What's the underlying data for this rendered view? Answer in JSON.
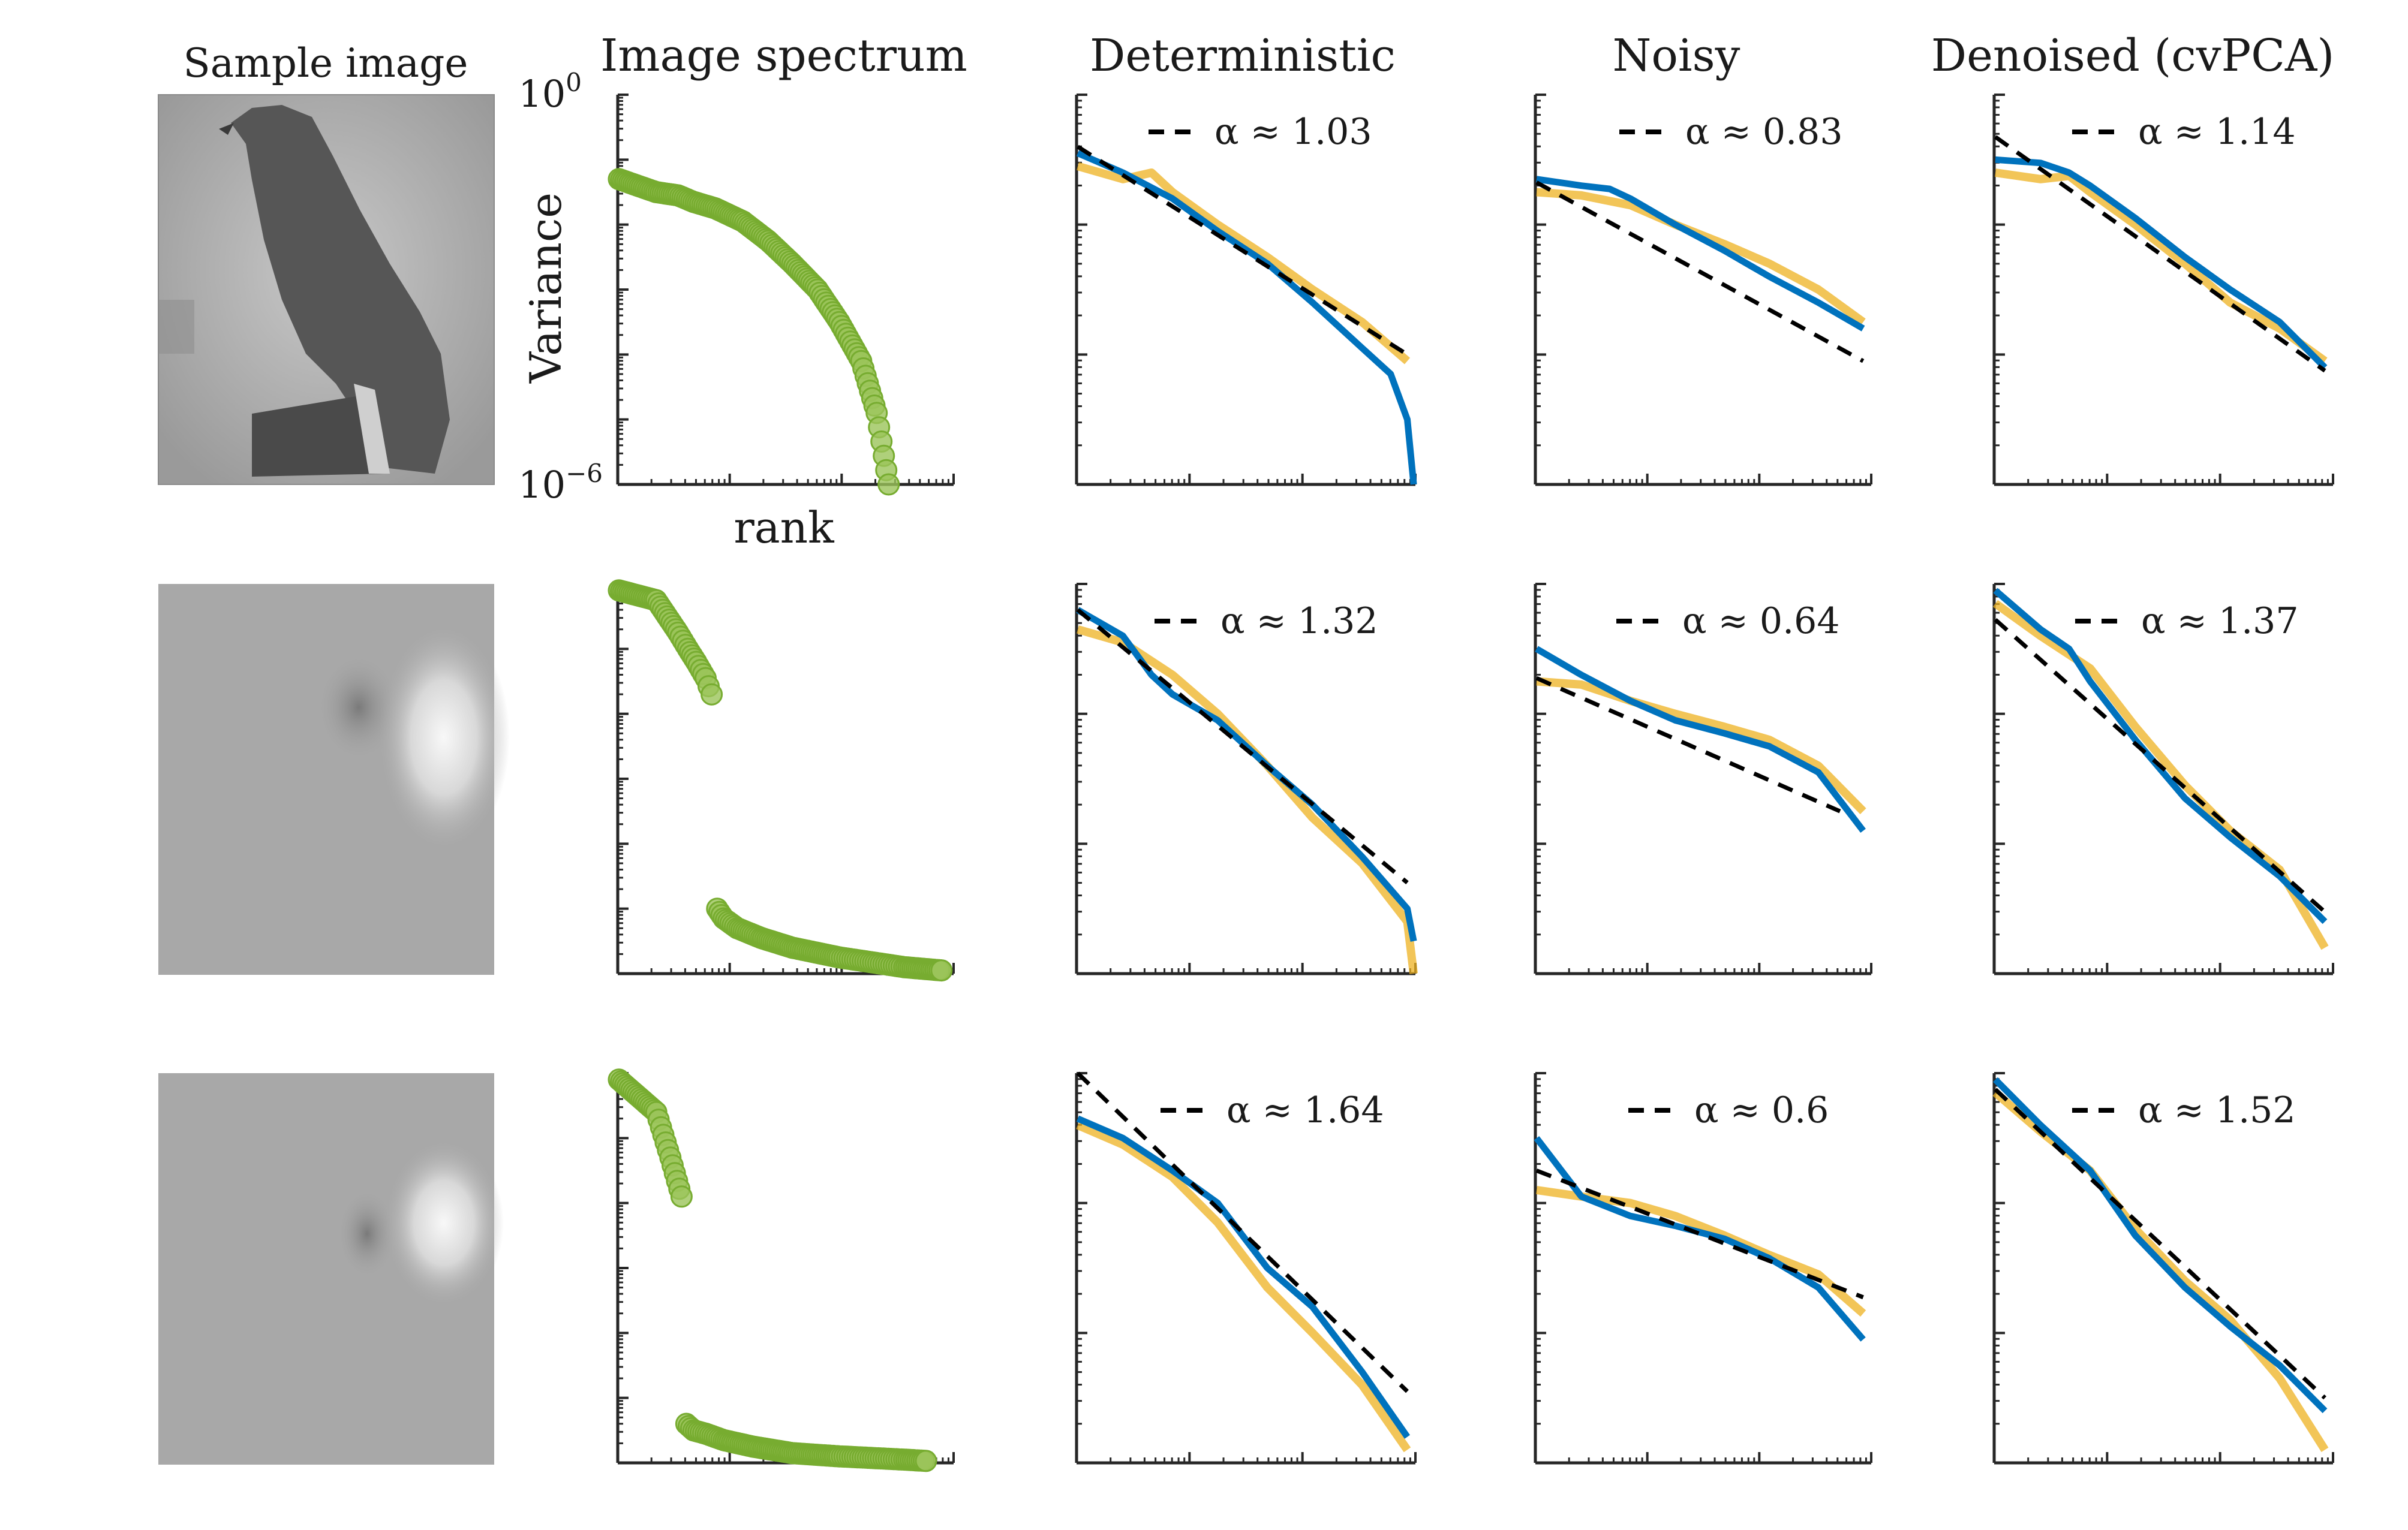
{
  "figure": {
    "column_titles": {
      "sample": "Sample image",
      "spectrum": "Image spectrum",
      "deterministic": "Deterministic",
      "noisy": "Noisy",
      "denoised": "Denoised (cvPCA)"
    },
    "spectrum_axes": {
      "ylabel": "Variance",
      "xlabel": "rank",
      "ytick_top": "10",
      "ytick_top_exp": "0",
      "ytick_bottom": "10",
      "ytick_bottom_exp": "−6"
    },
    "legend_prefix": "α ≈ "
  },
  "colors": {
    "measured": "#0072BD",
    "reference": "#EDB120",
    "points_fill": "#9BC45A",
    "points_stroke": "#77AC30",
    "fit": "#000000",
    "axis": "#262626"
  },
  "chart_data": {
    "type": "line",
    "scale": "log-log",
    "rows": [
      {
        "sample_image": "hawk",
        "spectrum": {
          "type": "scatter",
          "ylim_log10": [
            -6,
            0
          ],
          "points": [
            [
              1,
              -1.3
            ],
            [
              2,
              -1.5
            ],
            [
              3,
              -1.55
            ],
            [
              4,
              -1.65
            ],
            [
              6,
              -1.75
            ],
            [
              10,
              -1.95
            ],
            [
              16,
              -2.25
            ],
            [
              25,
              -2.6
            ],
            [
              40,
              -3.0
            ],
            [
              60,
              -3.5
            ],
            [
              90,
              -4.1
            ],
            [
              120,
              -4.9
            ],
            [
              150,
              -6.0
            ]
          ]
        },
        "panels": [
          {
            "name": "Deterministic",
            "alpha": "1.03",
            "blue": [
              [
                1,
                -0.9
              ],
              [
                3,
                -1.2
              ],
              [
                10,
                -1.6
              ],
              [
                30,
                -2.1
              ],
              [
                100,
                -2.6
              ],
              [
                300,
                -3.2
              ],
              [
                1000,
                -3.9
              ],
              [
                2000,
                -4.3
              ],
              [
                3000,
                -5.0
              ],
              [
                3500,
                -6.0
              ]
            ],
            "orange": [
              [
                1,
                -1.1
              ],
              [
                3,
                -1.3
              ],
              [
                6,
                -1.2
              ],
              [
                10,
                -1.5
              ],
              [
                30,
                -2.0
              ],
              [
                100,
                -2.5
              ],
              [
                300,
                -3.0
              ],
              [
                1000,
                -3.5
              ],
              [
                3000,
                -4.1
              ]
            ],
            "fit": [
              [
                1,
                -0.8
              ],
              [
                3000,
                -4.0
              ]
            ]
          },
          {
            "name": "Noisy",
            "alpha": "0.83",
            "blue": [
              [
                1,
                -1.3
              ],
              [
                3,
                -1.4
              ],
              [
                6,
                -1.45
              ],
              [
                10,
                -1.6
              ],
              [
                30,
                -2.0
              ],
              [
                100,
                -2.4
              ],
              [
                300,
                -2.8
              ],
              [
                1000,
                -3.2
              ],
              [
                3000,
                -3.6
              ]
            ],
            "orange": [
              [
                1,
                -1.5
              ],
              [
                3,
                -1.55
              ],
              [
                10,
                -1.7
              ],
              [
                30,
                -2.0
              ],
              [
                100,
                -2.3
              ],
              [
                300,
                -2.6
              ],
              [
                1000,
                -3.0
              ],
              [
                3000,
                -3.5
              ]
            ],
            "fit": [
              [
                1,
                -1.35
              ],
              [
                3000,
                -4.1
              ]
            ]
          },
          {
            "name": "Denoised (cvPCA)",
            "alpha": "1.14",
            "blue": [
              [
                1,
                -1.0
              ],
              [
                3,
                -1.05
              ],
              [
                6,
                -1.2
              ],
              [
                10,
                -1.4
              ],
              [
                30,
                -1.9
              ],
              [
                100,
                -2.5
              ],
              [
                300,
                -3.0
              ],
              [
                1000,
                -3.5
              ],
              [
                3000,
                -4.2
              ]
            ],
            "orange": [
              [
                1,
                -1.2
              ],
              [
                3,
                -1.3
              ],
              [
                6,
                -1.25
              ],
              [
                10,
                -1.5
              ],
              [
                30,
                -2.0
              ],
              [
                100,
                -2.6
              ],
              [
                300,
                -3.2
              ],
              [
                1000,
                -3.6
              ],
              [
                3000,
                -4.1
              ]
            ],
            "fit": [
              [
                1,
                -0.65
              ],
              [
                3000,
                -4.25
              ]
            ]
          }
        ]
      },
      {
        "sample_image": "blob-1",
        "spectrum": {
          "type": "scatter",
          "ylim_log10": [
            -6,
            0
          ],
          "points": [
            [
              1,
              -0.1
            ],
            [
              2,
              -0.25
            ],
            [
              3,
              -0.75
            ],
            [
              3.6,
              -1.0
            ],
            [
              4.2,
              -1.2
            ],
            [
              5,
              -1.45
            ],
            [
              5.6,
              -1.7
            ],
            [
              6.2,
              -5.0
            ],
            [
              7,
              -5.15
            ],
            [
              9,
              -5.3
            ],
            [
              14,
              -5.45
            ],
            [
              25,
              -5.6
            ],
            [
              60,
              -5.75
            ],
            [
              200,
              -5.9
            ],
            [
              400,
              -5.95
            ]
          ]
        },
        "panels": [
          {
            "name": "Deterministic",
            "alpha": "1.32",
            "blue": [
              [
                1,
                -0.4
              ],
              [
                3,
                -0.8
              ],
              [
                6,
                -1.4
              ],
              [
                10,
                -1.7
              ],
              [
                30,
                -2.1
              ],
              [
                100,
                -2.8
              ],
              [
                300,
                -3.4
              ],
              [
                1000,
                -4.2
              ],
              [
                3000,
                -5.0
              ],
              [
                3500,
                -5.5
              ]
            ],
            "orange": [
              [
                1,
                -0.7
              ],
              [
                3,
                -0.9
              ],
              [
                10,
                -1.4
              ],
              [
                30,
                -2.0
              ],
              [
                100,
                -2.8
              ],
              [
                300,
                -3.6
              ],
              [
                1000,
                -4.3
              ],
              [
                3000,
                -5.2
              ],
              [
                3500,
                -6.0
              ]
            ],
            "fit": [
              [
                1,
                -0.4
              ],
              [
                3000,
                -4.6
              ]
            ]
          },
          {
            "name": "Noisy",
            "alpha": "0.64",
            "blue": [
              [
                1,
                -1.0
              ],
              [
                3,
                -1.4
              ],
              [
                10,
                -1.8
              ],
              [
                30,
                -2.1
              ],
              [
                100,
                -2.3
              ],
              [
                300,
                -2.5
              ],
              [
                1000,
                -2.9
              ],
              [
                3000,
                -3.8
              ]
            ],
            "orange": [
              [
                1,
                -1.5
              ],
              [
                3,
                -1.55
              ],
              [
                10,
                -1.8
              ],
              [
                30,
                -2.0
              ],
              [
                100,
                -2.2
              ],
              [
                300,
                -2.4
              ],
              [
                1000,
                -2.8
              ],
              [
                3000,
                -3.5
              ]
            ],
            "fit": [
              [
                1,
                -1.45
              ],
              [
                1700,
                -3.5
              ]
            ]
          },
          {
            "name": "Denoised (cvPCA)",
            "alpha": "1.37",
            "blue": [
              [
                1,
                -0.1
              ],
              [
                3,
                -0.7
              ],
              [
                6,
                -1.0
              ],
              [
                10,
                -1.5
              ],
              [
                30,
                -2.4
              ],
              [
                100,
                -3.3
              ],
              [
                300,
                -3.9
              ],
              [
                1000,
                -4.5
              ],
              [
                3000,
                -5.2
              ]
            ],
            "orange": [
              [
                1,
                -0.3
              ],
              [
                3,
                -0.8
              ],
              [
                10,
                -1.3
              ],
              [
                30,
                -2.2
              ],
              [
                100,
                -3.1
              ],
              [
                300,
                -3.8
              ],
              [
                1000,
                -4.4
              ],
              [
                3000,
                -5.6
              ]
            ],
            "fit": [
              [
                1,
                -0.55
              ],
              [
                3000,
                -5.05
              ]
            ]
          }
        ]
      },
      {
        "sample_image": "blob-2",
        "spectrum": {
          "type": "scatter",
          "ylim_log10": [
            -6,
            0
          ],
          "points": [
            [
              1,
              -0.1
            ],
            [
              2,
              -0.6
            ],
            [
              2.6,
              -1.3
            ],
            [
              3.2,
              -1.9
            ],
            [
              3.5,
              -5.4
            ],
            [
              4,
              -5.5
            ],
            [
              5,
              -5.55
            ],
            [
              7,
              -5.65
            ],
            [
              12,
              -5.75
            ],
            [
              25,
              -5.85
            ],
            [
              60,
              -5.9
            ],
            [
              200,
              -5.95
            ],
            [
              300,
              -5.97
            ]
          ]
        },
        "panels": [
          {
            "name": "Deterministic",
            "alpha": "1.64",
            "blue": [
              [
                1,
                -0.7
              ],
              [
                3,
                -1.0
              ],
              [
                10,
                -1.5
              ],
              [
                30,
                -2.0
              ],
              [
                100,
                -3.0
              ],
              [
                300,
                -3.6
              ],
              [
                1000,
                -4.6
              ],
              [
                3000,
                -5.6
              ]
            ],
            "orange": [
              [
                1,
                -0.8
              ],
              [
                3,
                -1.1
              ],
              [
                10,
                -1.6
              ],
              [
                30,
                -2.3
              ],
              [
                100,
                -3.3
              ],
              [
                300,
                -4.0
              ],
              [
                1000,
                -4.8
              ],
              [
                3000,
                -5.8
              ]
            ],
            "fit": [
              [
                1,
                0.0
              ],
              [
                3000,
                -4.9
              ]
            ]
          },
          {
            "name": "Noisy",
            "alpha": "0.6",
            "blue": [
              [
                1,
                -1.0
              ],
              [
                3,
                -1.9
              ],
              [
                10,
                -2.2
              ],
              [
                30,
                -2.35
              ],
              [
                100,
                -2.55
              ],
              [
                300,
                -2.85
              ],
              [
                1000,
                -3.3
              ],
              [
                3000,
                -4.1
              ]
            ],
            "orange": [
              [
                1,
                -1.8
              ],
              [
                3,
                -1.9
              ],
              [
                10,
                -2.0
              ],
              [
                30,
                -2.2
              ],
              [
                100,
                -2.5
              ],
              [
                300,
                -2.8
              ],
              [
                1000,
                -3.1
              ],
              [
                3000,
                -3.7
              ]
            ],
            "fit": [
              [
                1,
                -1.5
              ],
              [
                3000,
                -3.45
              ]
            ]
          },
          {
            "name": "Denoised (cvPCA)",
            "alpha": "1.52",
            "blue": [
              [
                1,
                -0.1
              ],
              [
                3,
                -0.8
              ],
              [
                10,
                -1.5
              ],
              [
                30,
                -2.5
              ],
              [
                100,
                -3.3
              ],
              [
                300,
                -3.9
              ],
              [
                1000,
                -4.5
              ],
              [
                3000,
                -5.2
              ]
            ],
            "orange": [
              [
                1,
                -0.3
              ],
              [
                3,
                -0.9
              ],
              [
                10,
                -1.5
              ],
              [
                30,
                -2.4
              ],
              [
                100,
                -3.2
              ],
              [
                300,
                -3.8
              ],
              [
                1000,
                -4.7
              ],
              [
                3000,
                -5.8
              ]
            ],
            "fit": [
              [
                1,
                -0.25
              ],
              [
                3000,
                -5.0
              ]
            ]
          }
        ]
      }
    ]
  }
}
